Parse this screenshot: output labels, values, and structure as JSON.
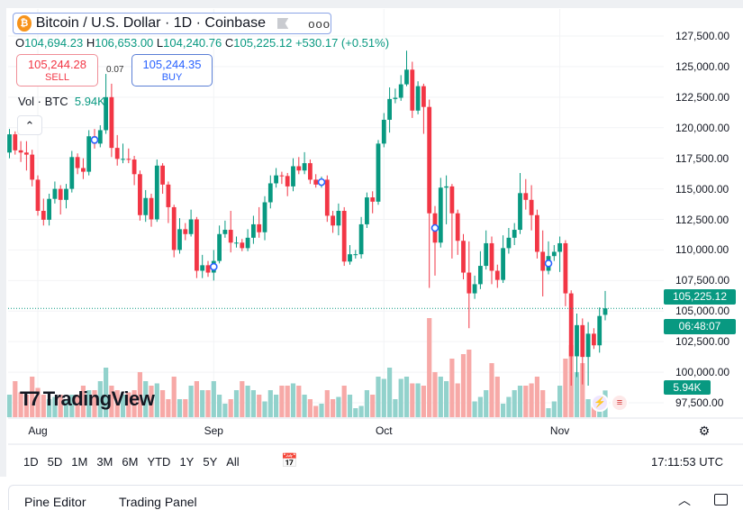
{
  "header": {
    "title": "Bitcoin / U.S. Dollar · 1D · Coinbase",
    "ohlc": {
      "o_label": "O",
      "o": "104,694.23",
      "h_label": "H",
      "h": "106,653.00",
      "l_label": "L",
      "l": "104,240.76",
      "c_label": "C",
      "c": "105,225.12",
      "change": "+530.17 (+0.51%)"
    },
    "sell": {
      "price": "105,244.28",
      "label": "SELL"
    },
    "buy": {
      "price": "105,244.35",
      "label": "BUY"
    },
    "spread": "0.07",
    "volume": {
      "label": "Vol · BTC",
      "value": "5.94K"
    }
  },
  "price_tag": {
    "price": "105,225.12",
    "countdown": "06:48:07"
  },
  "volume_tag": "5.94K",
  "time_ranges": [
    "1D",
    "5D",
    "1M",
    "3M",
    "6M",
    "YTD",
    "1Y",
    "5Y",
    "All"
  ],
  "clock": "17:11:53 UTC",
  "bottom_panel": {
    "pine_editor": "Pine Editor",
    "trading_panel": "Trading Panel"
  },
  "logo": "TradingView",
  "colors": {
    "up": "#089981",
    "down": "#f23645",
    "vol_up": "#92d2cc",
    "vol_down": "#f7a9a7",
    "marker": "#2962ff"
  },
  "chart_data": {
    "type": "candlestick",
    "symbol": "BTCUSD",
    "interval": "1D",
    "ylim": [
      97500,
      127500
    ],
    "y_ticks": [
      "127,500.00",
      "125,000.00",
      "122,500.00",
      "120,000.00",
      "117,500.00",
      "115,000.00",
      "112,500.00",
      "110,000.00",
      "107,500.00",
      "105,000.00",
      "102,500.00",
      "100,000.00",
      "97,500.00"
    ],
    "y_tick_values": [
      127500,
      125000,
      122500,
      120000,
      117500,
      115000,
      112500,
      110000,
      107500,
      105000,
      102500,
      100000,
      97500
    ],
    "x_ticks": [
      {
        "label": "Aug",
        "index": 5
      },
      {
        "label": "Sep",
        "index": 36
      },
      {
        "label": "Oct",
        "index": 66
      },
      {
        "label": "Nov",
        "index": 97
      }
    ],
    "grid": true,
    "current_price": 105225.12,
    "event_markers": [
      15,
      36,
      55,
      75,
      95
    ],
    "ohlc": [
      [
        117970,
        119900,
        117500,
        119460
      ],
      [
        119460,
        119700,
        117800,
        118150
      ],
      [
        118150,
        118900,
        117200,
        117970
      ],
      [
        117970,
        118900,
        116500,
        117800
      ],
      [
        117800,
        118200,
        115200,
        115750
      ],
      [
        115750,
        116100,
        112800,
        113200
      ],
      [
        113200,
        114200,
        112000,
        112470
      ],
      [
        112470,
        114600,
        112000,
        114180
      ],
      [
        114180,
        115600,
        113800,
        115000
      ],
      [
        115000,
        115300,
        112900,
        114100
      ],
      [
        114100,
        115400,
        113400,
        115000
      ],
      [
        115000,
        118100,
        114700,
        117600
      ],
      [
        117600,
        117900,
        116200,
        116700
      ],
      [
        116700,
        117500,
        115800,
        116400
      ],
      [
        116400,
        119800,
        116100,
        119300
      ],
      [
        119300,
        119900,
        118300,
        118700
      ],
      [
        118700,
        120200,
        118400,
        119800
      ],
      [
        119800,
        124400,
        119500,
        122500
      ],
      [
        122500,
        123600,
        117600,
        118350
      ],
      [
        118350,
        119400,
        116900,
        117450
      ],
      [
        117450,
        118700,
        117100,
        117450
      ],
      [
        117450,
        118300,
        117100,
        117400
      ],
      [
        117400,
        117700,
        115300,
        116200
      ],
      [
        116200,
        116500,
        112400,
        112850
      ],
      [
        112850,
        114900,
        112300,
        114250
      ],
      [
        114250,
        114600,
        111900,
        112500
      ],
      [
        112500,
        117400,
        112300,
        116900
      ],
      [
        116900,
        117100,
        114600,
        115350
      ],
      [
        115350,
        115600,
        112200,
        113500
      ],
      [
        113500,
        113700,
        109400,
        110000
      ],
      [
        110000,
        112600,
        109700,
        111700
      ],
      [
        111700,
        112200,
        110800,
        111300
      ],
      [
        111300,
        113300,
        111100,
        112500
      ],
      [
        112500,
        112700,
        107700,
        108300
      ],
      [
        108300,
        109600,
        107700,
        108750
      ],
      [
        108750,
        109100,
        107800,
        108150
      ],
      [
        108150,
        110000,
        107500,
        109100
      ],
      [
        109100,
        112000,
        108900,
        111300
      ],
      [
        111300,
        112400,
        111000,
        111650
      ],
      [
        111650,
        113200,
        109800,
        110600
      ],
      [
        110600,
        111100,
        110200,
        110600
      ],
      [
        110600,
        110900,
        109900,
        110150
      ],
      [
        110150,
        111700,
        109900,
        111000
      ],
      [
        111000,
        112800,
        110500,
        112100
      ],
      [
        112100,
        113500,
        111000,
        111450
      ],
      [
        111450,
        114400,
        110800,
        113900
      ],
      [
        113900,
        116100,
        113400,
        115450
      ],
      [
        115450,
        116700,
        115100,
        116100
      ],
      [
        116100,
        116400,
        115400,
        116050
      ],
      [
        116050,
        116300,
        114400,
        115200
      ],
      [
        115200,
        117500,
        114800,
        116850
      ],
      [
        116850,
        117600,
        116200,
        116500
      ],
      [
        116500,
        118000,
        116200,
        117100
      ],
      [
        117100,
        117400,
        115400,
        115750
      ],
      [
        115750,
        116200,
        115100,
        115350
      ],
      [
        115350,
        116000,
        115100,
        115750
      ],
      [
        115750,
        116100,
        112300,
        112800
      ],
      [
        112800,
        113200,
        111400,
        112000
      ],
      [
        112000,
        113800,
        111200,
        113200
      ],
      [
        113200,
        113500,
        108700,
        109050
      ],
      [
        109050,
        110400,
        108800,
        109650
      ],
      [
        109650,
        110000,
        109300,
        109650
      ],
      [
        109650,
        112700,
        109300,
        112100
      ],
      [
        112100,
        114700,
        111800,
        114300
      ],
      [
        114300,
        114800,
        113000,
        113950
      ],
      [
        113950,
        119000,
        113700,
        118700
      ],
      [
        118700,
        121200,
        118400,
        120650
      ],
      [
        120650,
        123300,
        119600,
        122350
      ],
      [
        122350,
        123200,
        122000,
        122450
      ],
      [
        122450,
        124300,
        122200,
        123550
      ],
      [
        123550,
        126300,
        123400,
        124750
      ],
      [
        124750,
        125400,
        120800,
        121400
      ],
      [
        121400,
        123800,
        121100,
        123400
      ],
      [
        123400,
        123600,
        119500,
        121700
      ],
      [
        121700,
        122300,
        106900,
        113000
      ],
      [
        113000,
        113600,
        107900,
        110600
      ],
      [
        110600,
        115900,
        110200,
        115100
      ],
      [
        115100,
        116100,
        112100,
        115200
      ],
      [
        115200,
        115400,
        109300,
        113000
      ],
      [
        113000,
        113300,
        109600,
        110750
      ],
      [
        110750,
        111300,
        107600,
        108150
      ],
      [
        108150,
        110700,
        103600,
        106450
      ],
      [
        106450,
        107900,
        106000,
        107200
      ],
      [
        107200,
        109900,
        106800,
        108700
      ],
      [
        108700,
        111600,
        108400,
        110550
      ],
      [
        110550,
        111100,
        107200,
        108300
      ],
      [
        108300,
        108800,
        106900,
        107550
      ],
      [
        107550,
        111200,
        107300,
        110150
      ],
      [
        110150,
        111800,
        109700,
        111000
      ],
      [
        111000,
        112200,
        110400,
        111650
      ],
      [
        111650,
        116300,
        111300,
        114650
      ],
      [
        114650,
        115800,
        113300,
        114100
      ],
      [
        114100,
        115300,
        111600,
        112850
      ],
      [
        112850,
        113300,
        109300,
        109850
      ],
      [
        109850,
        111600,
        106200,
        108300
      ],
      [
        108300,
        110700,
        108000,
        109500
      ],
      [
        109500,
        110400,
        109100,
        109850
      ],
      [
        109850,
        111100,
        108200,
        110550
      ],
      [
        110550,
        110800,
        105400,
        106450
      ],
      [
        106450,
        106700,
        98900,
        101300
      ],
      [
        101300,
        104800,
        99600,
        103850
      ],
      [
        103850,
        104400,
        99000,
        101250
      ],
      [
        101250,
        104100,
        98900,
        103150
      ],
      [
        103150,
        103600,
        101900,
        102200
      ],
      [
        102200,
        105300,
        101600,
        104600
      ],
      [
        104694.23,
        106653.0,
        104240.76,
        105225.12
      ]
    ],
    "volume_k": [
      5,
      8,
      5.5,
      5,
      9,
      6.5,
      5,
      4,
      4.5,
      5,
      4,
      5,
      5,
      7,
      6,
      6,
      8,
      11,
      7,
      6,
      5,
      5.5,
      6,
      10,
      8,
      7,
      7.5,
      6,
      4,
      9,
      4,
      4,
      7,
      8,
      6,
      6,
      8,
      5,
      3,
      4,
      6,
      8,
      7,
      6,
      5,
      3.5,
      6,
      5,
      7,
      7,
      7.5,
      7,
      5,
      4,
      2.5,
      3,
      6,
      4,
      4.5,
      7,
      5,
      2,
      2.5,
      6,
      5,
      9,
      8.5,
      11,
      4,
      8.5,
      9,
      7.5,
      7.5,
      7,
      22,
      10,
      9,
      8,
      13,
      7.5,
      14,
      15,
      3.5,
      4.5,
      6,
      12,
      9,
      3,
      4.5,
      6,
      7,
      7,
      7.5,
      9,
      6,
      2,
      3.5,
      7,
      13,
      16,
      10,
      12,
      4,
      3,
      5,
      5.94
    ]
  }
}
